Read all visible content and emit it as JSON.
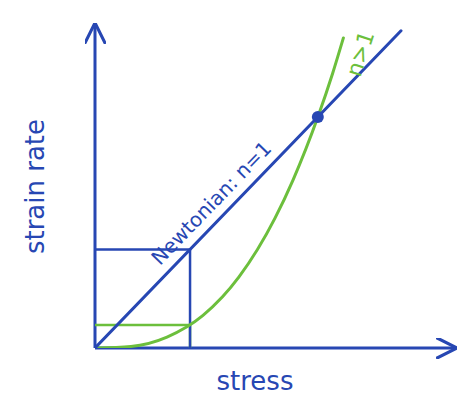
{
  "chart_data": {
    "type": "line",
    "x_label": "stress",
    "y_label": "strain rate",
    "xlim": [
      0,
      10
    ],
    "ylim": [
      0,
      10
    ],
    "tick_labels": false,
    "series": [
      {
        "name": "n>1",
        "color": "#6cbf3c",
        "x": [
          0,
          1,
          2,
          3,
          4,
          5,
          5.5,
          6.19,
          6.6,
          6.9
        ],
        "values": [
          0,
          0.05,
          0.34,
          1.01,
          2.2,
          4.02,
          5.2,
          7.15,
          8.5,
          9.6
        ],
        "guide": {
          "x": 2.64,
          "y": 0.71
        }
      },
      {
        "name": "Newtonian: n=1",
        "color": "#2747b3",
        "x": [
          0,
          8.5
        ],
        "values": [
          0,
          9.82
        ],
        "guide": {
          "x": 2.64,
          "y": 3.05
        }
      }
    ],
    "markers": [
      {
        "x": 6.19,
        "y": 7.15,
        "color": "#2747b3"
      }
    ]
  }
}
